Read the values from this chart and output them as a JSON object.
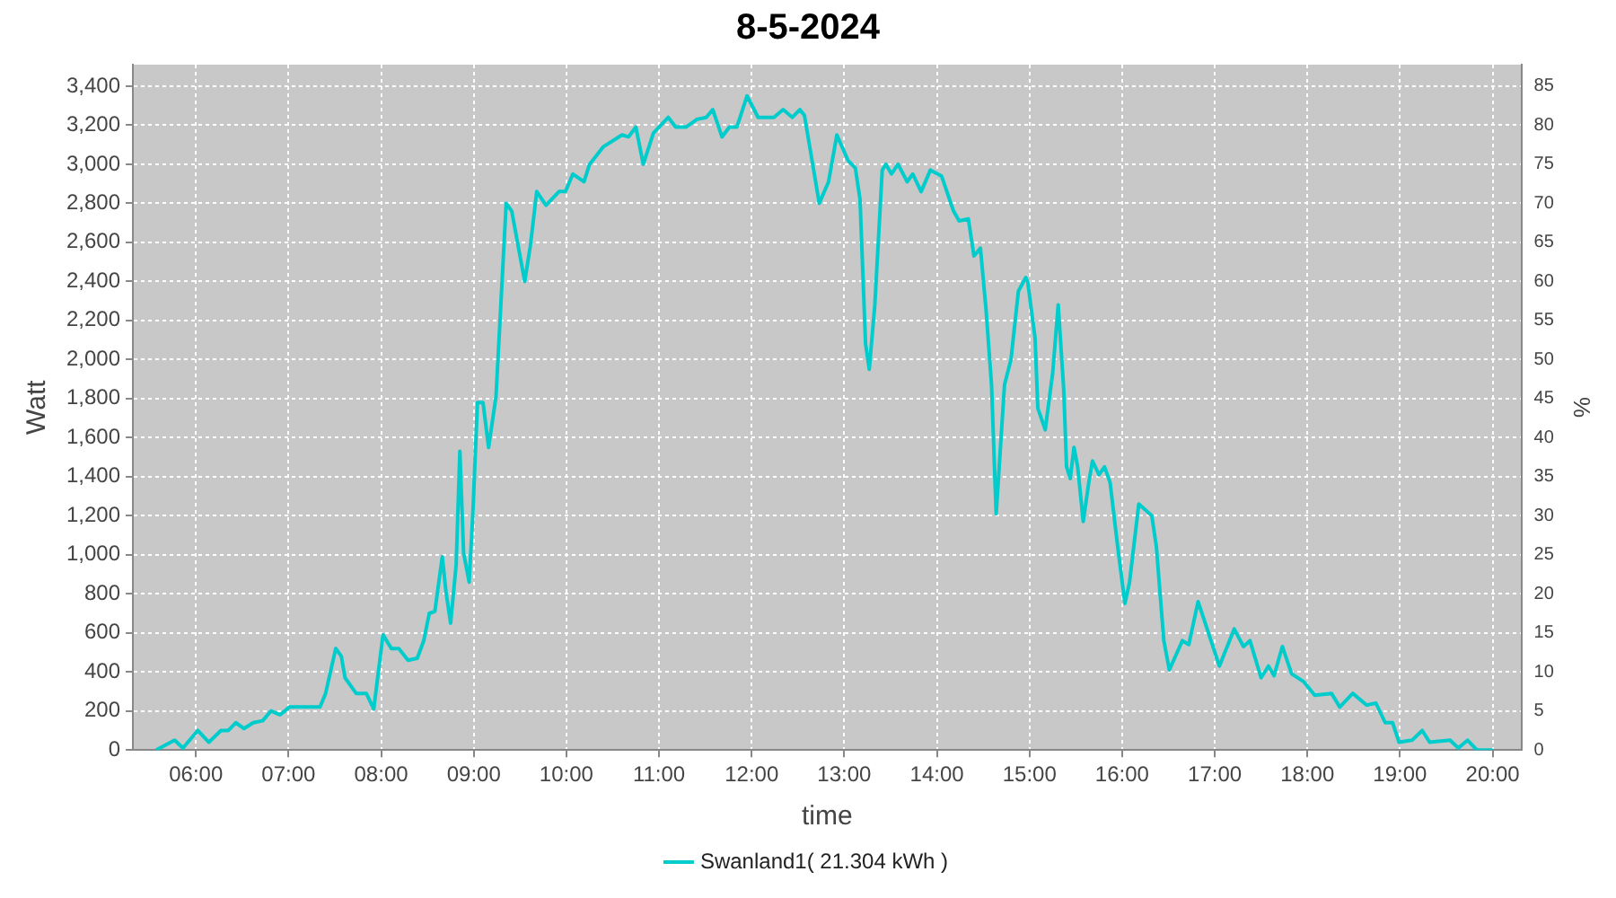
{
  "chart_data": {
    "type": "line",
    "title": "8-5-2024",
    "xlabel": "time",
    "ylabel": "Watt",
    "y2label": "%",
    "xlim": [
      5.32,
      20.31
    ],
    "xticks": [
      {
        "value": 6,
        "label": "06:00"
      },
      {
        "value": 7,
        "label": "07:00"
      },
      {
        "value": 8,
        "label": "08:00"
      },
      {
        "value": 9,
        "label": "09:00"
      },
      {
        "value": 10,
        "label": "10:00"
      },
      {
        "value": 11,
        "label": "11:00"
      },
      {
        "value": 12,
        "label": "12:00"
      },
      {
        "value": 13,
        "label": "13:00"
      },
      {
        "value": 14,
        "label": "14:00"
      },
      {
        "value": 15,
        "label": "15:00"
      },
      {
        "value": 16,
        "label": "16:00"
      },
      {
        "value": 17,
        "label": "17:00"
      },
      {
        "value": 18,
        "label": "18:00"
      },
      {
        "value": 19,
        "label": "19:00"
      },
      {
        "value": 20,
        "label": "20:00"
      }
    ],
    "ylim": [
      0,
      3510
    ],
    "yticks": [
      {
        "value": 0,
        "label": "0"
      },
      {
        "value": 200,
        "label": "200"
      },
      {
        "value": 400,
        "label": "400"
      },
      {
        "value": 600,
        "label": "600"
      },
      {
        "value": 800,
        "label": "800"
      },
      {
        "value": 1000,
        "label": "1,000"
      },
      {
        "value": 1200,
        "label": "1,200"
      },
      {
        "value": 1400,
        "label": "1,400"
      },
      {
        "value": 1600,
        "label": "1,600"
      },
      {
        "value": 1800,
        "label": "1,800"
      },
      {
        "value": 2000,
        "label": "2,000"
      },
      {
        "value": 2200,
        "label": "2,200"
      },
      {
        "value": 2400,
        "label": "2,400"
      },
      {
        "value": 2600,
        "label": "2,600"
      },
      {
        "value": 2800,
        "label": "2,800"
      },
      {
        "value": 3000,
        "label": "3,000"
      },
      {
        "value": 3200,
        "label": "3,200"
      },
      {
        "value": 3400,
        "label": "3,400"
      }
    ],
    "y2lim": [
      0,
      87.75
    ],
    "y2ticks": [
      0,
      5,
      10,
      15,
      20,
      25,
      30,
      35,
      40,
      45,
      50,
      55,
      60,
      65,
      70,
      75,
      80,
      85
    ],
    "grid": true,
    "legend": "bottom",
    "marker": "none",
    "line_style": "solid",
    "x": [
      5.57,
      5.77,
      5.86,
      6.02,
      6.14,
      6.27,
      6.35,
      6.43,
      6.52,
      6.62,
      6.72,
      6.81,
      6.91,
      7.01,
      7.26,
      7.34,
      7.4,
      7.51,
      7.57,
      7.61,
      7.73,
      7.84,
      7.92,
      8.02,
      8.11,
      8.19,
      8.29,
      8.39,
      8.46,
      8.52,
      8.58,
      8.66,
      8.7,
      8.75,
      8.81,
      8.85,
      8.89,
      8.95,
      8.99,
      9.04,
      9.1,
      9.16,
      9.24,
      9.3,
      9.35,
      9.41,
      9.55,
      9.61,
      9.68,
      9.78,
      9.92,
      9.99,
      10.07,
      10.19,
      10.25,
      10.4,
      10.6,
      10.67,
      10.75,
      10.83,
      10.94,
      11.1,
      11.18,
      11.29,
      11.41,
      11.51,
      11.58,
      11.68,
      11.76,
      11.84,
      11.95,
      12.07,
      12.24,
      12.34,
      12.44,
      12.52,
      12.57,
      12.73,
      12.83,
      12.92,
      13.04,
      13.12,
      13.17,
      13.23,
      13.27,
      13.33,
      13.41,
      13.45,
      13.51,
      13.58,
      13.68,
      13.74,
      13.83,
      13.93,
      14.05,
      14.18,
      14.24,
      14.34,
      14.4,
      14.47,
      14.53,
      14.59,
      14.64,
      14.73,
      14.8,
      14.88,
      14.96,
      14.98,
      15.06,
      15.09,
      15.17,
      15.25,
      15.31,
      15.37,
      15.4,
      15.44,
      15.48,
      15.52,
      15.58,
      15.64,
      15.68,
      15.75,
      15.81,
      15.87,
      15.95,
      16.03,
      16.08,
      16.18,
      16.32,
      16.37,
      16.45,
      16.51,
      16.65,
      16.72,
      16.82,
      17.05,
      17.21,
      17.31,
      17.38,
      17.5,
      17.58,
      17.64,
      17.73,
      17.83,
      17.96,
      18.08,
      18.26,
      18.35,
      18.49,
      18.64,
      18.74,
      18.84,
      18.92,
      18.99,
      19.13,
      19.24,
      19.32,
      19.54,
      19.63,
      19.73,
      19.83,
      20.0
    ],
    "series": [
      {
        "name": "Swanland1( 21.304 kWh )",
        "color": "#00cccc",
        "values": [
          0,
          50,
          10,
          100,
          40,
          100,
          100,
          140,
          110,
          140,
          150,
          200,
          180,
          220,
          220,
          220,
          290,
          520,
          480,
          370,
          290,
          290,
          210,
          590,
          520,
          520,
          460,
          470,
          560,
          700,
          710,
          990,
          810,
          650,
          950,
          1530,
          1010,
          860,
          1210,
          1780,
          1780,
          1550,
          1810,
          2350,
          2800,
          2760,
          2400,
          2580,
          2860,
          2790,
          2860,
          2860,
          2950,
          2910,
          3000,
          3090,
          3150,
          3140,
          3190,
          3000,
          3160,
          3240,
          3190,
          3190,
          3230,
          3240,
          3280,
          3140,
          3190,
          3190,
          3350,
          3240,
          3240,
          3280,
          3240,
          3280,
          3250,
          2800,
          2910,
          3150,
          3020,
          2980,
          2820,
          2080,
          1950,
          2280,
          2970,
          3000,
          2950,
          3000,
          2910,
          2950,
          2860,
          2970,
          2940,
          2760,
          2710,
          2720,
          2530,
          2570,
          2260,
          1870,
          1210,
          1870,
          2000,
          2350,
          2420,
          2400,
          2110,
          1750,
          1640,
          1930,
          2280,
          1840,
          1450,
          1390,
          1550,
          1450,
          1170,
          1370,
          1480,
          1410,
          1450,
          1370,
          1050,
          750,
          860,
          1260,
          1200,
          1040,
          560,
          410,
          560,
          540,
          760,
          430,
          620,
          530,
          560,
          370,
          430,
          380,
          530,
          390,
          350,
          280,
          290,
          220,
          290,
          230,
          240,
          140,
          140,
          40,
          50,
          100,
          40,
          50,
          10,
          50,
          0,
          0
        ]
      }
    ]
  }
}
